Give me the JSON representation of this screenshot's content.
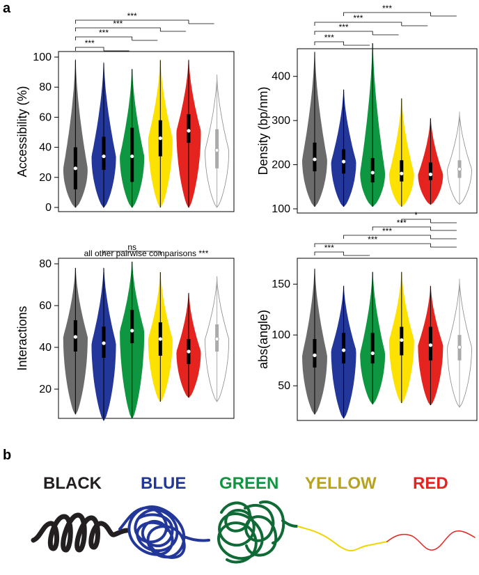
{
  "panel_labels": [
    "a",
    "b"
  ],
  "group_colors": [
    "#6b6b6b",
    "#23379a",
    "#0f9640",
    "#fde100",
    "#e5231f",
    "#ffffff"
  ],
  "chart_data": [
    {
      "type": "violin",
      "ylabel": "Accessibility (%)",
      "ylim": [
        0,
        100
      ],
      "yticks": [
        0,
        20,
        40,
        60,
        80,
        100
      ],
      "groups": [
        {
          "color": "#6b6b6b",
          "min": 0,
          "max": 98,
          "q1": 12,
          "median": 26,
          "q3": 40
        },
        {
          "color": "#23379a",
          "min": 0,
          "max": 96,
          "q1": 25,
          "median": 34,
          "q3": 47
        },
        {
          "color": "#0f9640",
          "min": 0,
          "max": 92,
          "q1": 17,
          "median": 34,
          "q3": 53
        },
        {
          "color": "#fde100",
          "min": 0,
          "max": 98,
          "q1": 34,
          "median": 46,
          "q3": 58
        },
        {
          "color": "#e5231f",
          "min": 0,
          "max": 98,
          "q1": 43,
          "median": 51,
          "q3": 62
        },
        {
          "color": "#ffffff",
          "min": 0,
          "max": 88,
          "q1": 26,
          "median": 38,
          "q3": 52
        }
      ],
      "comparisons": [
        {
          "from": 1,
          "to": 2,
          "label": "***"
        },
        {
          "from": 1,
          "to": 3,
          "label": "***"
        },
        {
          "from": 1,
          "to": 4,
          "label": "***"
        },
        {
          "from": 1,
          "to": 5,
          "label": "***"
        }
      ]
    },
    {
      "type": "violin",
      "ylabel": "Density (bp/nm)",
      "ylim": [
        100,
        450
      ],
      "yticks": [
        100,
        200,
        300,
        400
      ],
      "groups": [
        {
          "color": "#6b6b6b",
          "min": 105,
          "max": 455,
          "q1": 185,
          "median": 212,
          "q3": 250
        },
        {
          "color": "#23379a",
          "min": 105,
          "max": 370,
          "q1": 180,
          "median": 207,
          "q3": 235
        },
        {
          "color": "#0f9640",
          "min": 105,
          "max": 475,
          "q1": 160,
          "median": 182,
          "q3": 215
        },
        {
          "color": "#fde100",
          "min": 105,
          "max": 350,
          "q1": 162,
          "median": 180,
          "q3": 210
        },
        {
          "color": "#e5231f",
          "min": 110,
          "max": 305,
          "q1": 165,
          "median": 178,
          "q3": 205
        },
        {
          "color": "#ffffff",
          "min": 110,
          "max": 320,
          "q1": 170,
          "median": 190,
          "q3": 210
        }
      ],
      "comparisons": [
        {
          "from": 1,
          "to": 2,
          "label": "***"
        },
        {
          "from": 1,
          "to": 3,
          "label": "***"
        },
        {
          "from": 1,
          "to": 4,
          "label": "***"
        },
        {
          "from": 2,
          "to": 5,
          "label": "***"
        }
      ]
    },
    {
      "type": "violin",
      "ylabel": "Interactions",
      "ylim": [
        8,
        80
      ],
      "yticks": [
        20,
        40,
        60,
        80
      ],
      "groups": [
        {
          "color": "#6b6b6b",
          "min": 8,
          "max": 78,
          "q1": 38,
          "median": 45,
          "q3": 53
        },
        {
          "color": "#23379a",
          "min": 5,
          "max": 78,
          "q1": 35,
          "median": 42,
          "q3": 50
        },
        {
          "color": "#0f9640",
          "min": 6,
          "max": 81,
          "q1": 42,
          "median": 48,
          "q3": 58
        },
        {
          "color": "#fde100",
          "min": 14,
          "max": 76,
          "q1": 36,
          "median": 44,
          "q3": 52
        },
        {
          "color": "#e5231f",
          "min": 16,
          "max": 66,
          "q1": 32,
          "median": 38,
          "q3": 44
        },
        {
          "color": "#ffffff",
          "min": 14,
          "max": 74,
          "q1": 38,
          "median": 44,
          "q3": 51
        }
      ],
      "comparisons": [
        {
          "from": 2,
          "to": 4,
          "label": "ns"
        }
      ],
      "note": "all other pairwise comparisons ***"
    },
    {
      "type": "violin",
      "ylabel": "abs(angle)",
      "ylim": [
        20,
        170
      ],
      "yticks": [
        50,
        100,
        150
      ],
      "groups": [
        {
          "color": "#6b6b6b",
          "min": 22,
          "max": 165,
          "q1": 68,
          "median": 80,
          "q3": 96
        },
        {
          "color": "#23379a",
          "min": 18,
          "max": 148,
          "q1": 72,
          "median": 85,
          "q3": 102
        },
        {
          "color": "#0f9640",
          "min": 32,
          "max": 162,
          "q1": 72,
          "median": 82,
          "q3": 102
        },
        {
          "color": "#fde100",
          "min": 33,
          "max": 162,
          "q1": 80,
          "median": 95,
          "q3": 108
        },
        {
          "color": "#e5231f",
          "min": 31,
          "max": 148,
          "q1": 75,
          "median": 90,
          "q3": 108
        },
        {
          "color": "#ffffff",
          "min": 29,
          "max": 155,
          "q1": 75,
          "median": 88,
          "q3": 100
        }
      ],
      "comparisons": [
        {
          "from": 1,
          "to": 2,
          "label": "***"
        },
        {
          "from": 1,
          "to": 5,
          "label": "***"
        },
        {
          "from": 2,
          "to": 5,
          "label": "***"
        },
        {
          "from": 3,
          "to": 5,
          "label": "***"
        },
        {
          "from": 4,
          "to": 5,
          "label": "*"
        }
      ]
    }
  ],
  "polymer_labels": [
    {
      "text": "BLACK",
      "color": "#231f20"
    },
    {
      "text": "BLUE",
      "color": "#23379a"
    },
    {
      "text": "GREEN",
      "color": "#0f9640"
    },
    {
      "text": "YELLOW",
      "color": "#b8a21e"
    },
    {
      "text": "RED",
      "color": "#e5231f"
    }
  ]
}
